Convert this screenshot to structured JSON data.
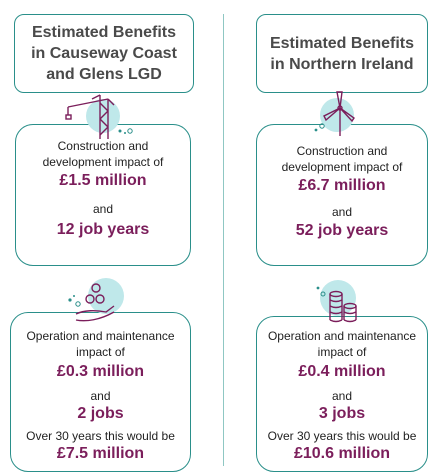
{
  "colors": {
    "accent_teal": "#2a8f8a",
    "value_purple": "#7b1e5b",
    "icon_bg": "#bfe8ea",
    "title_text": "#4a4a4a"
  },
  "left": {
    "title_lines": [
      "Estimated Benefits",
      "in Causeway Coast",
      "and Glens LGD"
    ],
    "icon_top": "crane-icon",
    "icon_bottom": "hand-coins-icon",
    "construction": {
      "line1": "Construction and",
      "line2": "development impact of",
      "value": "£1.5 million",
      "and": "and",
      "value2": "12 job years"
    },
    "operation": {
      "line1": "Operation and maintenance",
      "line2": "impact of",
      "value": "£0.3 million",
      "and": "and",
      "value2": "2 jobs",
      "line3": "Over 30 years this would be",
      "value3": "£7.5 million"
    }
  },
  "right": {
    "title_lines": [
      "Estimated Benefits",
      "in Northern Ireland"
    ],
    "icon_top": "wind-turbine-icon",
    "icon_bottom": "coin-stacks-icon",
    "construction": {
      "line1": "Construction and",
      "line2": "development impact of",
      "value": "£6.7 million",
      "and": "and",
      "value2": "52 job years"
    },
    "operation": {
      "line1": "Operation and maintenance",
      "line2": "impact of",
      "value": "£0.4 million",
      "and": "and",
      "value2": "3 jobs",
      "line3": "Over 30 years this would be",
      "value3": "£10.6 million"
    }
  }
}
